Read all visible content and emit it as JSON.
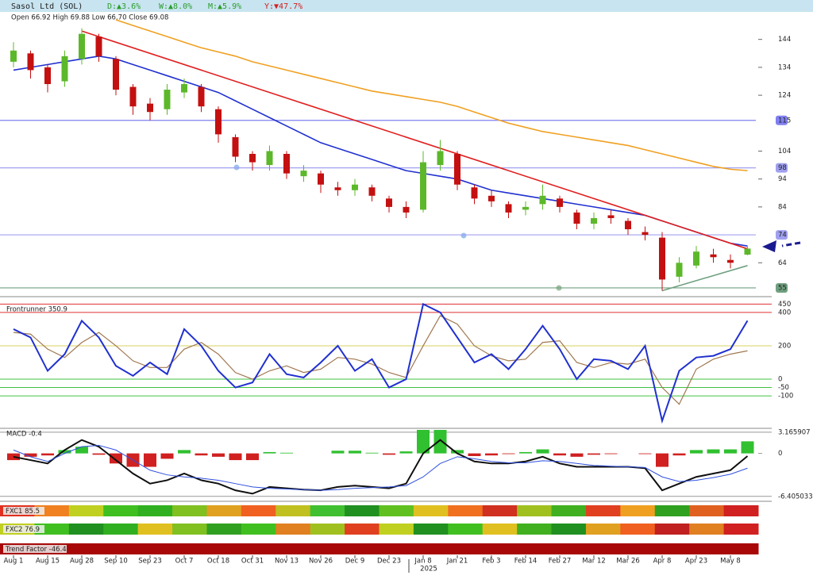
{
  "header": {
    "title": "Sasol Ltd (SOL)",
    "changes": [
      "D:▲3.6%",
      "W:▲8.0%",
      "M:▲5.9%",
      "Y:▼47.7%"
    ],
    "change_colors": [
      "#2a9d2a",
      "#2a9d2a",
      "#2a9d2a",
      "#d02020"
    ],
    "ohlc": "Open 66.92  High 69.88  Low 66.70  Close 69.08"
  },
  "chart_data": [
    {
      "type": "candlestick",
      "categories": [
        "Aug 1",
        null,
        "Aug 15",
        null,
        "Aug 28",
        null,
        "Sep 10",
        null,
        "Sep 23",
        null,
        "Oct 7",
        null,
        "Oct 18",
        null,
        "Oct 31",
        null,
        "Nov 13",
        null,
        "Nov 26",
        null,
        "Dec 9",
        null,
        "Dec 23",
        null,
        "Jan 8",
        null,
        "Jan 21",
        null,
        "Feb 3",
        null,
        "Feb 14",
        null,
        "Feb 27",
        null,
        "Mar 12",
        null,
        "Mar 26",
        null,
        "Apr 8",
        null,
        "Apr 23",
        null,
        "May 8",
        null
      ],
      "year_label": "2025",
      "open": [
        136,
        139,
        134,
        129,
        137,
        145,
        137,
        127,
        121,
        119,
        125,
        127,
        119,
        109,
        103,
        99,
        103,
        95,
        96,
        91,
        90,
        91,
        87,
        84,
        83,
        99,
        103,
        91,
        88,
        85,
        83,
        85,
        87,
        82,
        78,
        81,
        79,
        75,
        73,
        59,
        63,
        67,
        65,
        66.92
      ],
      "high": [
        143,
        140,
        135,
        140,
        148,
        146,
        138,
        128,
        123,
        128,
        130,
        128,
        120,
        110,
        104,
        106,
        104,
        99,
        97,
        93,
        94,
        92,
        88,
        86,
        104,
        108,
        104,
        92,
        90,
        86,
        86,
        92,
        88,
        83,
        82,
        83,
        80,
        77,
        75,
        66,
        70,
        69,
        67,
        69.88
      ],
      "low": [
        134,
        130,
        125,
        127,
        135,
        136,
        124,
        117,
        115,
        117,
        123,
        118,
        107,
        100,
        97,
        97,
        94,
        93,
        89,
        88,
        88,
        86,
        82,
        80,
        82,
        97,
        90,
        85,
        84,
        80,
        81,
        83,
        82,
        76,
        76,
        78,
        74,
        72,
        54,
        57,
        62,
        64,
        62,
        66.7
      ],
      "close": [
        140,
        133,
        128,
        138,
        146,
        138,
        126,
        120,
        118,
        126,
        128,
        120,
        110,
        102,
        100,
        104,
        96,
        97,
        92,
        90,
        92,
        88,
        84,
        82,
        100,
        104,
        92,
        87,
        86,
        82,
        84,
        88,
        84,
        78,
        80,
        80,
        76,
        74,
        58,
        64,
        68,
        66,
        64,
        69.08
      ],
      "up_color": "#5cb82a",
      "down_color": "#c41010",
      "lines": [
        {
          "color": "#2030d0",
          "values": [
            133,
            134,
            135,
            136,
            137,
            138,
            137,
            135,
            133,
            131,
            129,
            127,
            125,
            122,
            119,
            116,
            113,
            110,
            107,
            105,
            103,
            101,
            99,
            97,
            96,
            95,
            94,
            92,
            90,
            89,
            88,
            87,
            86,
            85,
            84,
            83,
            82,
            81,
            79,
            77,
            75,
            73,
            71,
            70
          ]
        },
        {
          "color": "#f0a020",
          "values": [
            null,
            null,
            null,
            null,
            null,
            null,
            151,
            149,
            147,
            145,
            143,
            141,
            139.5,
            138,
            136,
            134.5,
            133,
            131.5,
            130,
            128.5,
            127,
            125.5,
            124.5,
            123.5,
            122.5,
            121.5,
            120,
            118,
            116,
            114,
            112.5,
            111,
            110,
            109,
            108,
            107,
            106,
            104.5,
            103,
            101.5,
            100,
            98.5,
            97.5,
            97
          ]
        }
      ],
      "trendlines": [
        {
          "color": "#e02020",
          "x": [
            4,
            43
          ],
          "values": [
            147,
            69
          ]
        },
        {
          "color": "#70a080",
          "x": [
            38,
            43
          ],
          "values": [
            54,
            63
          ]
        }
      ],
      "levels": [
        115,
        98,
        74,
        55
      ],
      "level_colors": [
        "#8080f0",
        "#a0a0f0",
        "#a0a0f0",
        "#70a080"
      ],
      "ylim": [
        53,
        153
      ],
      "yticks": [
        64,
        84,
        94,
        104,
        124,
        134,
        144
      ]
    },
    {
      "type": "line",
      "title": "Frontrunner 350.9",
      "series": [
        {
          "color": "#a07850",
          "values": [
            280,
            270,
            180,
            130,
            220,
            280,
            200,
            110,
            70,
            70,
            180,
            220,
            150,
            40,
            0,
            50,
            80,
            40,
            60,
            130,
            120,
            90,
            40,
            10,
            200,
            380,
            330,
            200,
            140,
            110,
            120,
            220,
            230,
            100,
            70,
            100,
            90,
            120,
            -50,
            -150,
            60,
            120,
            150,
            170
          ]
        },
        {
          "color": "#2030d0",
          "values": [
            300,
            250,
            50,
            150,
            350,
            250,
            80,
            20,
            100,
            30,
            300,
            200,
            50,
            -50,
            -20,
            150,
            30,
            10,
            100,
            200,
            50,
            120,
            -50,
            0,
            450,
            400,
            250,
            100,
            150,
            60,
            180,
            320,
            180,
            0,
            120,
            110,
            60,
            200,
            -250,
            50,
            130,
            140,
            180,
            350.9
          ]
        }
      ],
      "ylim": [
        -285,
        485
      ],
      "yticks": [
        450,
        400,
        200,
        0,
        -50,
        -100
      ],
      "tick_line_colors": [
        "#e03030",
        "#e03030",
        "#d8d060",
        "#40c040",
        "#40c040",
        "#40c040"
      ]
    },
    {
      "type": "macd",
      "title": "MACD -0.4",
      "series": [
        {
          "color": "#101010",
          "values": [
            -0.5,
            -1,
            -1.5,
            0.5,
            2,
            1,
            -1,
            -3,
            -4.5,
            -4,
            -3,
            -4,
            -4.5,
            -5.5,
            -6,
            -5,
            -5.2,
            -5.4,
            -5.5,
            -5,
            -4.8,
            -5,
            -5.2,
            -4.5,
            0,
            2,
            0,
            -1.2,
            -1.5,
            -1.5,
            -1.2,
            -0.5,
            -1.5,
            -2,
            -2,
            -2,
            -2,
            -2.2,
            -5.5,
            -4.5,
            -3.5,
            -3,
            -2.5,
            -0.4
          ]
        },
        {
          "color": "#3050e0",
          "values": [
            0.5,
            -0.5,
            -1.2,
            0,
            1,
            1.2,
            0.5,
            -1,
            -2.5,
            -3.2,
            -3.5,
            -3.7,
            -4,
            -4.5,
            -5,
            -5.2,
            -5.3,
            -5.4,
            -5.5,
            -5.4,
            -5.2,
            -5.1,
            -5,
            -4.8,
            -3.5,
            -1.5,
            -0.5,
            -0.8,
            -1.2,
            -1.4,
            -1.4,
            -1.1,
            -1.2,
            -1.5,
            -1.8,
            -1.9,
            -2,
            -2.1,
            -3.5,
            -4.2,
            -4,
            -3.6,
            -3.1,
            -2.2
          ]
        }
      ],
      "histogram": [
        -1,
        -0.5,
        -0.3,
        0.5,
        1,
        -0.2,
        -1.5,
        -2,
        -2,
        -0.8,
        0.5,
        -0.3,
        -0.5,
        -1,
        -1,
        0.2,
        0.1,
        0,
        0,
        0.4,
        0.4,
        0.1,
        -0.2,
        0.3,
        3.5,
        3.5,
        0.5,
        -0.4,
        -0.3,
        -0.1,
        0.2,
        0.6,
        -0.3,
        -0.5,
        -0.2,
        -0.1,
        0,
        -0.1,
        -2,
        -0.3,
        0.5,
        0.6,
        0.6,
        1.8
      ],
      "up_color": "#30c030",
      "down_color": "#d02020",
      "ylim": [
        -6.9,
        3.5
      ],
      "yticks": [
        3.165907,
        0,
        -6.405033
      ]
    },
    {
      "type": "heatstrip",
      "strips": [
        {
          "label": "FXC1 85.5",
          "colors": [
            "#e03020",
            "#f08020",
            "#c0d020",
            "#40c020",
            "#30b020",
            "#80c020",
            "#e0a020",
            "#f06020",
            "#c0c020",
            "#40c030",
            "#209020",
            "#60c020",
            "#e0c020",
            "#f07020",
            "#d03020",
            "#a0c020",
            "#40b020",
            "#e04020",
            "#f0a020",
            "#30a020",
            "#e06020",
            "#d02020"
          ]
        },
        {
          "label": "FXC2 76.9",
          "colors": [
            "#c0d020",
            "#40c020",
            "#209020",
            "#30b020",
            "#e0c020",
            "#80c020",
            "#30a020",
            "#40c020",
            "#e08020",
            "#a0c020",
            "#e04020",
            "#c0d020",
            "#209020",
            "#40c020",
            "#e0c020",
            "#40b020",
            "#209020",
            "#e0a020",
            "#f06020",
            "#c02020",
            "#e08020",
            "#d02020"
          ]
        },
        {
          "label": "Trend Factor -46.4",
          "colors": [
            "#a80808"
          ]
        }
      ]
    }
  ]
}
